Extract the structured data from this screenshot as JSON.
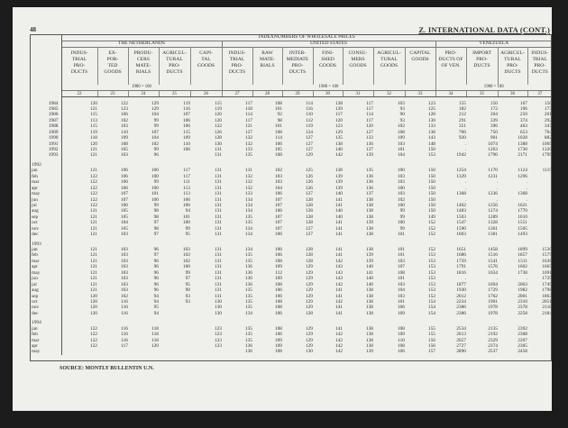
{
  "page_number": "48",
  "title": "Z. INTERNATIONAL DATA (CONT.)",
  "header": {
    "group": "INDEXNUMBERS OF WHOLESALE PRICES",
    "countries": [
      "THE NETHERLANDS",
      "UNITED STATES",
      "VENEZUELA"
    ],
    "base": "1980 = 100",
    "columns": [
      {
        "label": "INDUS-\nTRIAL\nPRO-\nDUCTS",
        "num": "22"
      },
      {
        "label": "EX-\nPOR-\nTED\nGOODS",
        "num": "23"
      },
      {
        "label": "PRODU-\nCERS\nMATE-\nRIALS",
        "num": "24"
      },
      {
        "label": "AGRICUL-\nTURAL\nPRO-\nDUCTS",
        "num": "25"
      },
      {
        "label": "CAPI-\nTAL\nGOODS",
        "num": "26"
      },
      {
        "label": "INDUS-\nTRIAL\nPRO-\nDUCTS",
        "num": "27"
      },
      {
        "label": "RAW\nMATE-\nRIALS",
        "num": "28"
      },
      {
        "label": "INTER-\nMEDIATE\nPRO-\nDUCTS",
        "num": "29"
      },
      {
        "label": "FINI-\nSHED\nGOODS",
        "num": "30"
      },
      {
        "label": "CONSU-\nMERS\nGOODS",
        "num": "31"
      },
      {
        "label": "AGRICUL-\nTURAL\nGOODS",
        "num": "32"
      },
      {
        "label": "CAPITAL\nGOODS",
        "num": "33"
      },
      {
        "label": "PRO-\nDUCTS OF\nOF VEN.",
        "num": "34"
      },
      {
        "label": "IMPORT\nPRO-\nDUCTS",
        "num": "35"
      },
      {
        "label": "AGRICUL-\nTURAL\nPRO-\nDUCTS",
        "num": "36"
      },
      {
        "label": "INDUS-\nTRIAL\nPRO-\nDUCTS",
        "num": "37"
      }
    ]
  },
  "sections": [
    {
      "year": "",
      "rows": [
        {
          "label": "1984",
          "v": [
            "120",
            "122",
            "129",
            "119",
            "115",
            "117",
            "108",
            "114",
            "138",
            "117",
            "103",
            "123",
            "155",
            "150",
            "167",
            "150"
          ]
        },
        {
          "label": "1985",
          "v": [
            "121",
            "123",
            "129",
            "116",
            "119",
            "118",
            "101",
            "116",
            "139",
            "117",
            "93",
            "125",
            "182",
            "172",
            "196",
            "173"
          ]
        },
        {
          "label": "1986",
          "v": [
            "115",
            "106",
            "104",
            "107",
            "120",
            "114",
            "92",
            "110",
            "117",
            "114",
            "90",
            "128",
            "212",
            "204",
            "250",
            "201"
          ]
        },
        {
          "label": "1987",
          "v": [
            "113",
            "102",
            "99",
            "106",
            "120",
            "117",
            "98",
            "112",
            "120",
            "117",
            "93",
            "130",
            "291",
            "339",
            "374",
            "292"
          ]
        },
        {
          "label": "1988",
          "v": [
            "115",
            "103",
            "99",
            "106",
            "122",
            "121",
            "101",
            "119",
            "123",
            "120",
            "102",
            "133",
            "351",
            "396",
            "463",
            "347"
          ]
        },
        {
          "label": "1989",
          "v": [
            "119",
            "110",
            "107",
            "115",
            "126",
            "127",
            "108",
            "124",
            "129",
            "127",
            "108",
            "138",
            "706",
            "750",
            "653",
            "704"
          ]
        },
        {
          "label": "1990",
          "v": [
            "118",
            "109",
            "104",
            "109",
            "128",
            "132",
            "114",
            "127",
            "135",
            "133",
            "109",
            "143",
            "920",
            "901",
            "1028",
            "882"
          ]
        },
        {
          "label": "1991",
          "v": [
            "120",
            "108",
            "102",
            "110",
            "130",
            "132",
            "106",
            "127",
            "138",
            "136",
            "103",
            "148",
            ".",
            "1074",
            "1388",
            "1069"
          ]
        },
        {
          "label": "1992",
          "v": [
            "121",
            "105",
            "99",
            "106",
            "131",
            "133",
            "105",
            "127",
            "140",
            "137",
            "101",
            "150",
            ".",
            "1263",
            "1730",
            "1320"
          ]
        },
        {
          "label": "1993",
          "v": [
            "121",
            "103",
            "96",
            "",
            "131",
            "135",
            "108",
            "129",
            "142",
            "139",
            "104",
            "153",
            "1942",
            "1790",
            "2171",
            "1799"
          ]
        }
      ]
    },
    {
      "year": "1992",
      "rows": [
        {
          "label": "jan",
          "v": [
            "121",
            "106",
            "100",
            "117",
            "131",
            "131",
            "102",
            "125",
            "138",
            "135",
            "100",
            "150",
            "1254",
            "1170",
            "1124",
            "1115"
          ]
        },
        {
          "label": "feb",
          "v": [
            "122",
            "106",
            "100",
            "117",
            "131",
            "132",
            "103",
            "126",
            "139",
            "136",
            "103",
            "150",
            "1329",
            "1231",
            "1296",
            "."
          ]
        },
        {
          "label": "mar",
          "v": [
            "122",
            "106",
            "99",
            "111",
            "131",
            "132",
            "103",
            "126",
            "139",
            "136",
            "103",
            "150",
            ".",
            ".",
            ".",
            "."
          ]
        },
        {
          "label": "apr",
          "v": [
            "122",
            "106",
            "100",
            "113",
            "131",
            "132",
            "104",
            "126",
            "139",
            "136",
            "100",
            "150",
            ".",
            ".",
            ".",
            "."
          ]
        },
        {
          "label": "may",
          "v": [
            "122",
            "107",
            "101",
            "113",
            "131",
            "133",
            "106",
            "127",
            "140",
            "137",
            "103",
            "150",
            "1368",
            "1236",
            "1368",
            "."
          ]
        },
        {
          "label": "jun",
          "v": [
            "122",
            "107",
            "100",
            "106",
            "131",
            "134",
            "107",
            "128",
            "141",
            "138",
            "102",
            "150",
            ".",
            ".",
            ".",
            "."
          ]
        },
        {
          "label": "jul",
          "v": [
            "122",
            "106",
            "99",
            "100",
            "131",
            "134",
            "107",
            "128",
            "141",
            "138",
            "100",
            "150",
            "1462",
            "1256",
            "1621",
            "."
          ]
        },
        {
          "label": "aug",
          "v": [
            "121",
            "105",
            "98",
            "94",
            "131",
            "134",
            "106",
            "128",
            "140",
            "138",
            "99",
            "150",
            "1483",
            "1274",
            "1770",
            "."
          ]
        },
        {
          "label": "sep",
          "v": [
            "121",
            "105",
            "98",
            "101",
            "131",
            "135",
            "107",
            "128",
            "140",
            "138",
            "99",
            "149",
            "1503",
            "1289",
            "1610",
            "."
          ]
        },
        {
          "label": "oct",
          "v": [
            "121",
            "104",
            "97",
            "100",
            "131",
            "135",
            "107",
            "128",
            "141",
            "139",
            "100",
            "152",
            "1547",
            "1328",
            "1551",
            "."
          ]
        },
        {
          "label": "nov",
          "v": [
            "121",
            "105",
            "98",
            "99",
            "131",
            "134",
            "107",
            "127",
            "141",
            "138",
            "99",
            "152",
            "1590",
            "1361",
            "1505",
            "."
          ]
        },
        {
          "label": "dec",
          "v": [
            "121",
            "103",
            "97",
            "95",
            "131",
            "134",
            "106",
            "127",
            "141",
            "138",
            "101",
            "152",
            "1603",
            "1381",
            "1493",
            "."
          ]
        }
      ]
    },
    {
      "year": "1993",
      "rows": [
        {
          "label": "jan",
          "v": [
            "121",
            "103",
            "96",
            "103",
            "131",
            "134",
            "106",
            "128",
            "141",
            "138",
            "101",
            "152",
            "1651",
            "1458",
            "1899",
            "1530"
          ]
        },
        {
          "label": "feb",
          "v": [
            "121",
            "103",
            "97",
            "102",
            "131",
            "135",
            "106",
            "128",
            "141",
            "139",
            "101",
            "153",
            "1686",
            "1510",
            "1857",
            "1575"
          ]
        },
        {
          "label": "mar",
          "v": [
            "121",
            "103",
            "96",
            "102",
            "131",
            "135",
            "108",
            "128",
            "142",
            "139",
            "103",
            "153",
            "1759",
            "1541",
            "1511",
            "1636"
          ]
        },
        {
          "label": "apr",
          "v": [
            "121",
            "103",
            "96",
            "100",
            "131",
            "136",
            "109",
            "129",
            "143",
            "140",
            "107",
            "153",
            "1791",
            "1576",
            "1602",
            "1665"
          ]
        },
        {
          "label": "may",
          "v": [
            "121",
            "103",
            "96",
            "99",
            "131",
            "136",
            "112",
            "129",
            "143",
            "141",
            "108",
            "153",
            "1816",
            "1634",
            "1738",
            "1691"
          ]
        },
        {
          "label": "jun",
          "v": [
            "121",
            "103",
            "96",
            "97",
            "131",
            "136",
            "109",
            "129",
            "143",
            "140",
            "101",
            "153",
            ".",
            ".",
            ".",
            "1729"
          ]
        },
        {
          "label": "jul",
          "v": [
            "121",
            "103",
            "96",
            "95",
            "131",
            "136",
            "108",
            "129",
            "142",
            "140",
            "103",
            "153",
            "1877",
            "1694",
            "2063",
            "1749"
          ]
        },
        {
          "label": "aug",
          "v": [
            "121",
            "103",
            "96",
            "90",
            "131",
            "135",
            "106",
            "129",
            "141",
            "138",
            "104",
            "153",
            "1930",
            "1729",
            "1982",
            "1798"
          ]
        },
        {
          "label": "sep",
          "v": [
            "120",
            "102",
            "94",
            "93",
            "131",
            "135",
            "106",
            "129",
            "141",
            "138",
            "103",
            "152",
            "2012",
            "1762",
            "2001",
            "1863"
          ]
        },
        {
          "label": "oct",
          "v": [
            "120",
            "116",
            "94",
            "93",
            "130",
            "135",
            "108",
            "129",
            "142",
            "138",
            "101",
            "154",
            "2234",
            "1901",
            "2310",
            "2051"
          ]
        },
        {
          "label": "nov",
          "v": [
            "120",
            "116",
            "95",
            "",
            "130",
            "135",
            "108",
            "129",
            "141",
            "138",
            "106",
            "154",
            "2386",
            "1978",
            "2378",
            "2118"
          ]
        },
        {
          "label": "dec",
          "v": [
            "120",
            "116",
            "94",
            "",
            "130",
            "134",
            "106",
            "128",
            "141",
            "138",
            "109",
            "154",
            "2386",
            "1978",
            "2258",
            "2184"
          ]
        }
      ]
    },
    {
      "year": "1994",
      "rows": [
        {
          "label": "jan",
          "v": [
            "122",
            "116",
            "118",
            "",
            "123",
            "135",
            "108",
            "129",
            "141",
            "138",
            "108",
            "155",
            "2534",
            "2135",
            "2392",
            ""
          ]
        },
        {
          "label": "feb",
          "v": [
            "122",
            "116",
            "118",
            "",
            "123",
            "135",
            "106",
            "129",
            "142",
            "138",
            "109",
            "155",
            "2613",
            "2192",
            "2308",
            ""
          ]
        },
        {
          "label": "mar",
          "v": [
            "122",
            "116",
            "118",
            "",
            "123",
            "135",
            "109",
            "129",
            "142",
            "138",
            "110",
            "156",
            "2657",
            "2329",
            "2207",
            ""
          ]
        },
        {
          "label": "apr",
          "v": [
            "122",
            "117",
            "120",
            "",
            "123",
            "136",
            "109",
            "129",
            "142",
            "138",
            "108",
            "156",
            "2727",
            "2374",
            "2305",
            ""
          ]
        },
        {
          "label": "may",
          "v": [
            "",
            "",
            "",
            "",
            "",
            "136",
            "108",
            "130",
            "142",
            "139",
            "106",
            "157",
            "2890",
            "2537",
            "2458",
            ""
          ]
        }
      ]
    }
  ],
  "source": "SOURCE: MONTLY BULLENTIN U.N."
}
